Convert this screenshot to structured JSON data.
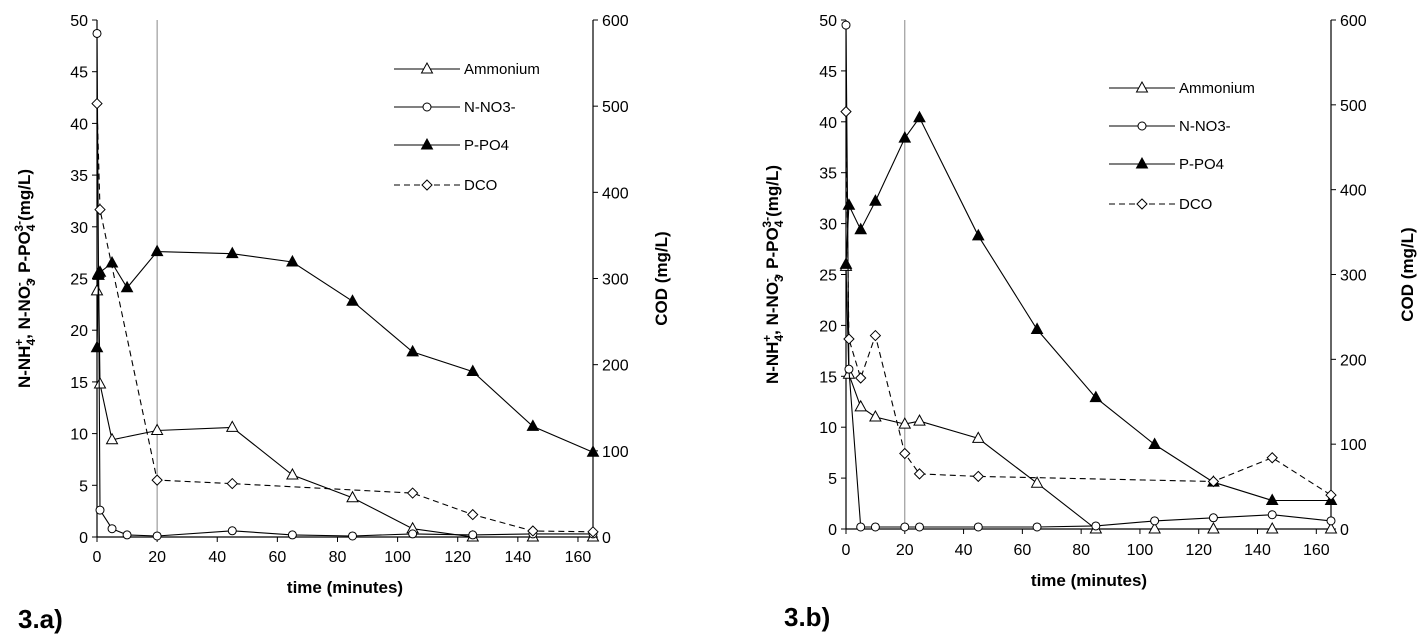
{
  "chart_data": [
    {
      "type": "line",
      "panel_label": "3.a)",
      "xlabel": "time (minutes)",
      "ylabel_left": "N-NH4+, N-NO3-, P-PO43-(mg/L)",
      "ylabel_left_parts": [
        "N-NH",
        "4",
        "+",
        ", N-NO",
        "3",
        "-",
        ", P-PO",
        "4",
        "3-",
        "(mg/L)"
      ],
      "ylabel_right": "COD (mg/L)",
      "xlim": [
        0,
        165
      ],
      "ylim_left": [
        0,
        50
      ],
      "ylim_right": [
        0,
        600
      ],
      "x_ticks": [
        "0",
        "20",
        "40",
        "60",
        "80",
        "100",
        "120",
        "140",
        "160"
      ],
      "y_left_ticks": [
        "0",
        "5",
        "10",
        "15",
        "20",
        "25",
        "30",
        "35",
        "40",
        "45",
        "50"
      ],
      "y_right_ticks": [
        "0",
        "100",
        "200",
        "300",
        "400",
        "500",
        "600"
      ],
      "vline_x": 20,
      "legend_position": "top-right",
      "series": [
        {
          "name": "Ammonium",
          "axis": "left",
          "marker": "triangle-open",
          "dash": "solid",
          "x": [
            0,
            0.5,
            1,
            5,
            20,
            45,
            65,
            85,
            105,
            125,
            145,
            165
          ],
          "y": [
            23.8,
            25.5,
            14.8,
            9.4,
            10.3,
            10.6,
            6.0,
            3.8,
            0.8,
            0.0,
            0.0,
            0.0
          ]
        },
        {
          "name": "N-NO3-",
          "axis": "left",
          "marker": "circle-open",
          "dash": "solid",
          "x": [
            0,
            1,
            5,
            10,
            20,
            45,
            65,
            85,
            105,
            125,
            145,
            165
          ],
          "y": [
            48.7,
            2.6,
            0.8,
            0.2,
            0.1,
            0.6,
            0.2,
            0.1,
            0.3,
            0.2,
            0.3,
            0.3
          ]
        },
        {
          "name": "P-PO4",
          "axis": "left",
          "marker": "triangle-filled",
          "dash": "solid",
          "x": [
            0,
            0.5,
            1,
            5,
            10,
            20,
            45,
            65,
            85,
            105,
            125,
            145,
            165
          ],
          "y": [
            18.3,
            25.3,
            25.6,
            26.5,
            24.1,
            27.6,
            27.4,
            26.6,
            22.8,
            17.9,
            16.0,
            10.7,
            8.2
          ]
        },
        {
          "name": "DCO",
          "axis": "right",
          "marker": "diamond-open",
          "dash": "dashed",
          "x": [
            0,
            1,
            20,
            45,
            105,
            125,
            145,
            165
          ],
          "y": [
            503,
            380,
            66,
            62,
            51,
            26,
            7,
            6
          ]
        }
      ]
    },
    {
      "type": "line",
      "panel_label": "3.b)",
      "xlabel": "time (minutes)",
      "ylabel_left": "N-NH4+, N-NO3-, P-PO43-(mg/L)",
      "ylabel_left_parts": [
        "N-NH",
        "4",
        "+",
        ", N-NO",
        "3",
        "-",
        ", P-PO",
        "4",
        "3-",
        "(mg/L)"
      ],
      "ylabel_right": "COD (mg/L)",
      "xlim": [
        0,
        165
      ],
      "ylim_left": [
        0,
        50
      ],
      "ylim_right": [
        0,
        600
      ],
      "x_ticks": [
        "0",
        "20",
        "40",
        "60",
        "80",
        "100",
        "120",
        "140",
        "160"
      ],
      "y_left_ticks": [
        "0",
        "5",
        "10",
        "15",
        "20",
        "25",
        "30",
        "35",
        "40",
        "45",
        "50"
      ],
      "y_right_ticks": [
        "0",
        "100",
        "200",
        "300",
        "400",
        "500",
        "600"
      ],
      "vline_x": 20,
      "legend_position": "top-right",
      "series": [
        {
          "name": "Ammonium",
          "axis": "left",
          "marker": "triangle-open",
          "dash": "solid",
          "x": [
            0,
            1,
            5,
            10,
            20,
            25,
            45,
            65,
            85,
            105,
            125,
            145,
            165
          ],
          "y": [
            25.8,
            15.2,
            12.0,
            11.0,
            10.3,
            10.6,
            8.9,
            4.5,
            0.0,
            0.0,
            0.0,
            0.0,
            0.0
          ]
        },
        {
          "name": "N-NO3-",
          "axis": "left",
          "marker": "circle-open",
          "dash": "solid",
          "x": [
            0,
            1,
            5,
            10,
            20,
            25,
            45,
            65,
            85,
            105,
            125,
            145,
            165
          ],
          "y": [
            49.5,
            15.7,
            0.2,
            0.2,
            0.2,
            0.2,
            0.2,
            0.2,
            0.3,
            0.8,
            1.1,
            1.4,
            0.8
          ]
        },
        {
          "name": "P-PO4",
          "axis": "left",
          "marker": "triangle-filled",
          "dash": "solid",
          "x": [
            0,
            1,
            5,
            10,
            20,
            25,
            45,
            65,
            85,
            105,
            125,
            145,
            165
          ],
          "y": [
            26.0,
            31.8,
            29.4,
            32.2,
            38.4,
            40.4,
            28.8,
            19.6,
            12.9,
            8.3,
            4.6,
            2.8,
            2.8
          ]
        },
        {
          "name": "DCO",
          "axis": "right",
          "marker": "diamond-open",
          "dash": "dashed",
          "x": [
            0,
            1,
            5,
            10,
            20,
            25,
            45,
            125,
            145,
            165
          ],
          "y": [
            492,
            224,
            178,
            228,
            89,
            65,
            62,
            56,
            84,
            40
          ]
        }
      ]
    }
  ]
}
